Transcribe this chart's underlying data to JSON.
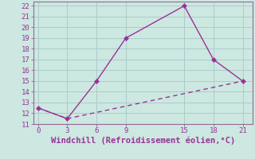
{
  "line1_x": [
    0,
    3,
    6,
    9,
    15,
    18,
    21
  ],
  "line1_y": [
    12.5,
    11.5,
    15,
    19,
    22,
    17,
    15
  ],
  "line2_x": [
    0,
    3,
    21
  ],
  "line2_y": [
    12.5,
    11.5,
    15
  ],
  "color": "#993399",
  "bg_color": "#cce8e0",
  "grid_color": "#aacccc",
  "xlabel": "Windchill (Refroidissement éolien,°C)",
  "xlabel_color": "#993399",
  "tick_color": "#993399",
  "spine_color": "#996699",
  "xlim": [
    -0.5,
    22
  ],
  "ylim": [
    11,
    22.4
  ],
  "xticks": [
    0,
    3,
    6,
    9,
    15,
    18,
    21
  ],
  "yticks": [
    11,
    12,
    13,
    14,
    15,
    16,
    17,
    18,
    19,
    20,
    21,
    22
  ],
  "marker": "D",
  "marker_size": 3,
  "line_width": 1.0,
  "tick_fontsize": 6.5,
  "xlabel_fontsize": 7.5
}
